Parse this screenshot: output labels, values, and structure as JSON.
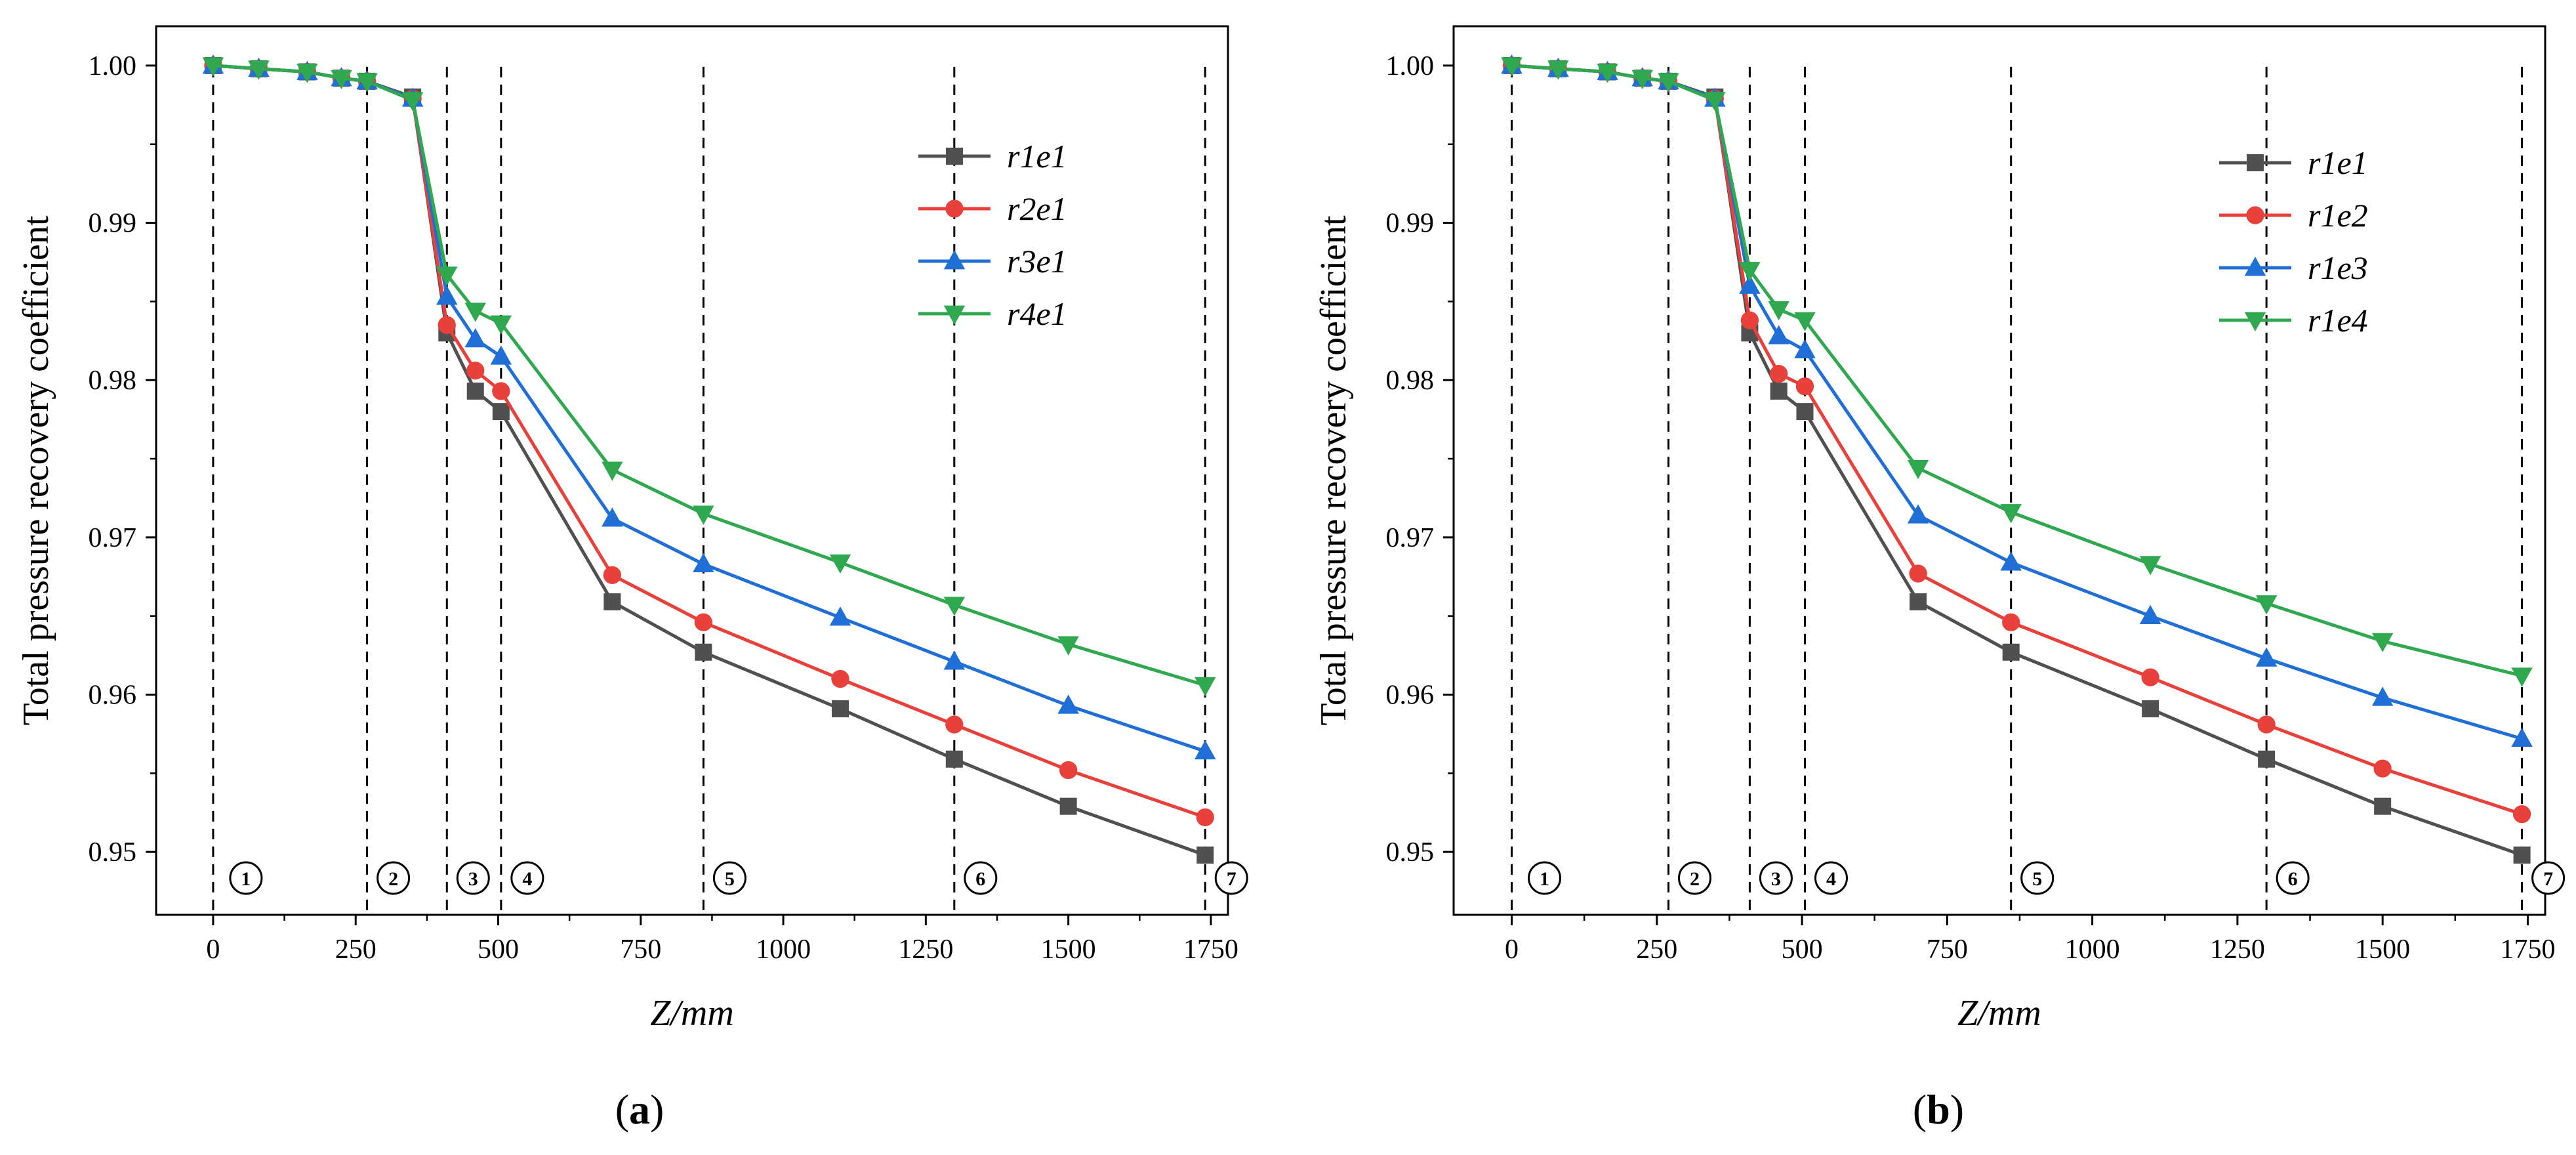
{
  "chart_data": [
    {
      "type": "line",
      "panel_label": "a",
      "xlabel": "Z/mm",
      "ylabel": "Total pressure recovery coefficient",
      "xlim": [
        -100,
        1780
      ],
      "ylim": [
        0.946,
        1.0025
      ],
      "x_ticks": [
        0,
        250,
        500,
        750,
        1000,
        1250,
        1500,
        1750
      ],
      "y_ticks": [
        0.95,
        0.96,
        0.97,
        0.98,
        0.99,
        1.0
      ],
      "y_tick_labels": [
        "0.95",
        "0.96",
        "0.97",
        "0.98",
        "0.99",
        "1.00"
      ],
      "legend_position": "top-right",
      "section_lines": [
        0,
        270,
        410,
        505,
        860,
        1300,
        1740
      ],
      "section_labels": [
        "1",
        "2",
        "3",
        "4",
        "5",
        "6",
        "7"
      ],
      "x": [
        0,
        80,
        165,
        225,
        270,
        350,
        410,
        460,
        505,
        700,
        860,
        1100,
        1300,
        1500,
        1740
      ],
      "series": [
        {
          "name": "r1e1",
          "color": "#505050",
          "marker": "square",
          "values": [
            1.0,
            0.9998,
            0.9996,
            0.9992,
            0.999,
            0.998,
            0.983,
            0.9793,
            0.978,
            0.9659,
            0.9627,
            0.9591,
            0.9559,
            0.9529,
            0.9498
          ]
        },
        {
          "name": "r2e1",
          "color": "#e8403a",
          "marker": "circle",
          "values": [
            1.0,
            0.9998,
            0.9996,
            0.9992,
            0.999,
            0.9979,
            0.9835,
            0.9806,
            0.9793,
            0.9676,
            0.9646,
            0.961,
            0.9581,
            0.9552,
            0.9522
          ]
        },
        {
          "name": "r3e1",
          "color": "#1f6fd6",
          "marker": "triangle-up",
          "values": [
            1.0,
            0.9998,
            0.9996,
            0.9992,
            0.999,
            0.9979,
            0.9853,
            0.9826,
            0.9815,
            0.9712,
            0.9683,
            0.9649,
            0.9621,
            0.9593,
            0.9564
          ]
        },
        {
          "name": "r4e1",
          "color": "#2fa84f",
          "marker": "triangle-down",
          "values": [
            1.0,
            0.9998,
            0.9996,
            0.9992,
            0.999,
            0.9978,
            0.9867,
            0.9844,
            0.9836,
            0.9743,
            0.9715,
            0.9684,
            0.9657,
            0.9632,
            0.9606
          ]
        }
      ]
    },
    {
      "type": "line",
      "panel_label": "b",
      "xlabel": "Z/mm",
      "ylabel": "Total pressure recovery coefficient",
      "xlim": [
        -100,
        1780
      ],
      "ylim": [
        0.946,
        1.0025
      ],
      "x_ticks": [
        0,
        250,
        500,
        750,
        1000,
        1250,
        1500,
        1750
      ],
      "y_ticks": [
        0.95,
        0.96,
        0.97,
        0.98,
        0.99,
        1.0
      ],
      "y_tick_labels": [
        "0.95",
        "0.96",
        "0.97",
        "0.98",
        "0.99",
        "1.00"
      ],
      "legend_position": "top-right",
      "section_lines": [
        0,
        270,
        410,
        505,
        860,
        1300,
        1740
      ],
      "section_labels": [
        "1",
        "2",
        "3",
        "4",
        "5",
        "6",
        "7"
      ],
      "x": [
        0,
        80,
        165,
        225,
        270,
        350,
        410,
        460,
        505,
        700,
        860,
        1100,
        1300,
        1500,
        1740
      ],
      "series": [
        {
          "name": "r1e1",
          "color": "#505050",
          "marker": "square",
          "values": [
            1.0,
            0.9998,
            0.9996,
            0.9992,
            0.999,
            0.998,
            0.983,
            0.9793,
            0.978,
            0.9659,
            0.9627,
            0.9591,
            0.9559,
            0.9529,
            0.9498
          ]
        },
        {
          "name": "r1e2",
          "color": "#e8403a",
          "marker": "circle",
          "values": [
            1.0,
            0.9998,
            0.9996,
            0.9992,
            0.999,
            0.9979,
            0.9838,
            0.9804,
            0.9796,
            0.9677,
            0.9646,
            0.9611,
            0.9581,
            0.9553,
            0.9524
          ]
        },
        {
          "name": "r1e3",
          "color": "#1f6fd6",
          "marker": "triangle-up",
          "values": [
            1.0,
            0.9998,
            0.9996,
            0.9992,
            0.999,
            0.9979,
            0.986,
            0.9828,
            0.9819,
            0.9714,
            0.9684,
            0.965,
            0.9623,
            0.9598,
            0.9572
          ]
        },
        {
          "name": "r1e4",
          "color": "#2fa84f",
          "marker": "triangle-down",
          "values": [
            1.0,
            0.9998,
            0.9996,
            0.9992,
            0.999,
            0.9978,
            0.987,
            0.9845,
            0.9838,
            0.9744,
            0.9716,
            0.9683,
            0.9658,
            0.9634,
            0.9612
          ]
        }
      ]
    }
  ]
}
